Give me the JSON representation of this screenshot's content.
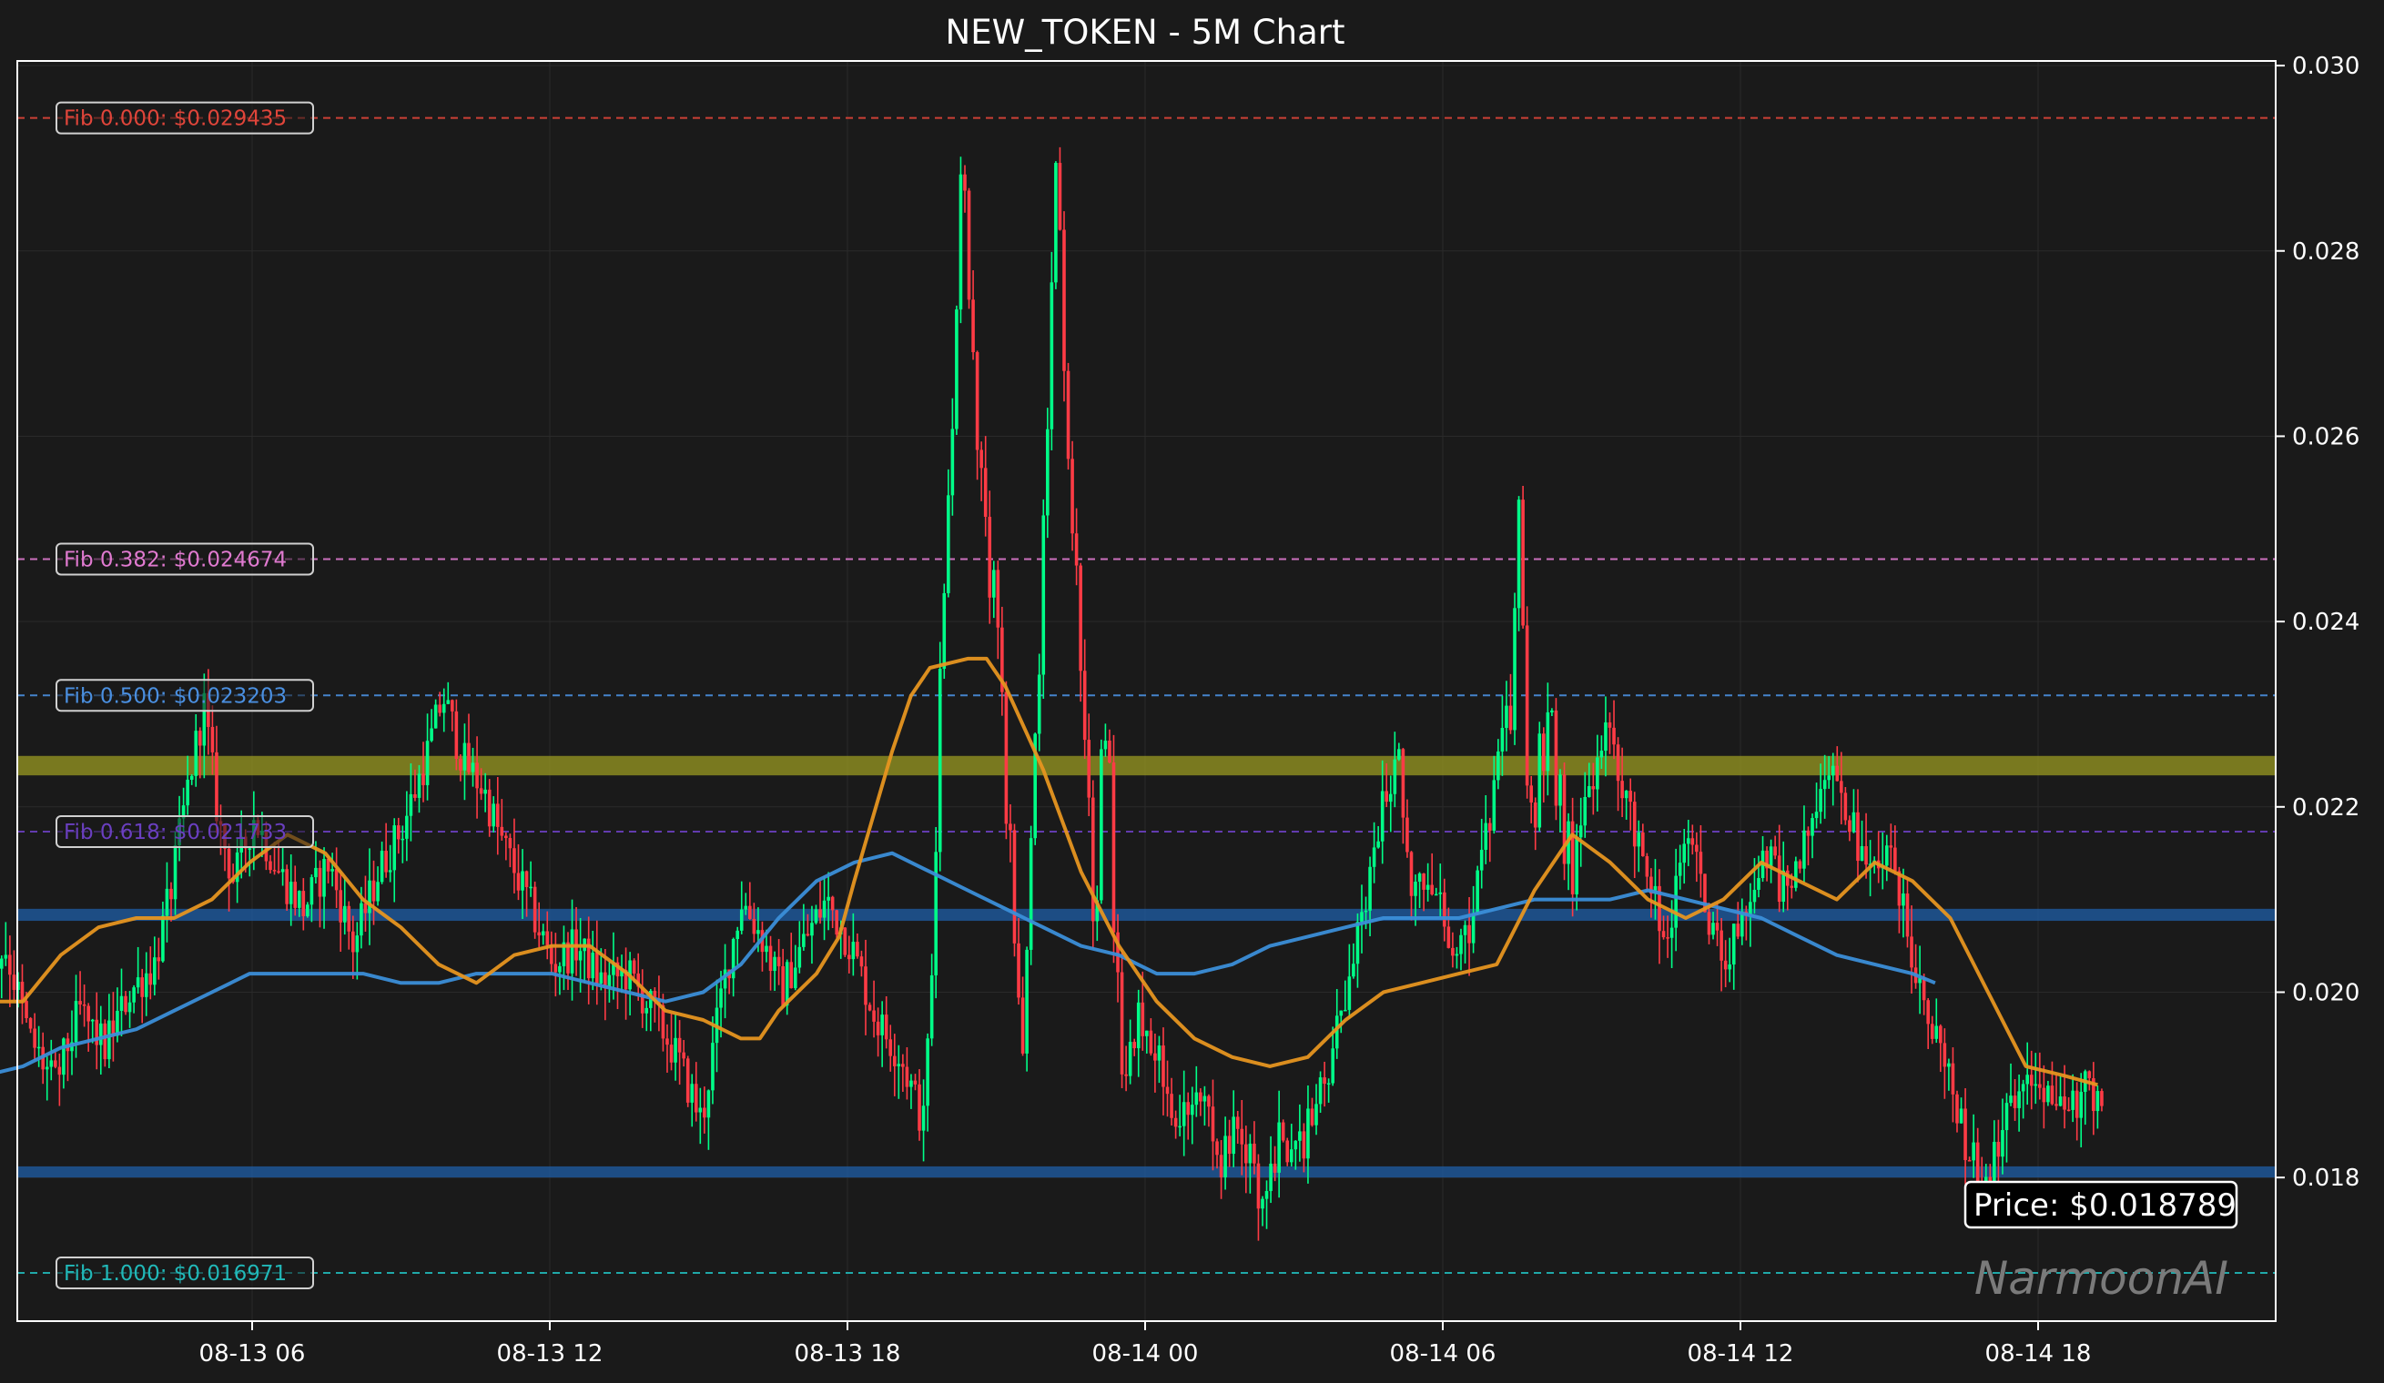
{
  "chart_data": {
    "type": "candlestick",
    "title": "NEW_TOKEN - 5M Chart",
    "ylim": [
      0.01645,
      0.03005
    ],
    "x_range_hours": [
      -3.8,
      26.75
    ],
    "x_ticks": [
      {
        "label": "08-13 06",
        "hour": 6
      },
      {
        "label": "08-13 12",
        "hour": 12
      },
      {
        "label": "08-13 18",
        "hour": 18
      },
      {
        "label": "08-14 00",
        "hour": 24
      },
      {
        "label": "08-14 06",
        "hour": 30
      },
      {
        "label": "08-14 12",
        "hour": 36
      },
      {
        "label": "08-14 18",
        "hour": 42
      }
    ],
    "y_ticks": [
      {
        "label": "0.018",
        "value": 0.018
      },
      {
        "label": "0.020",
        "value": 0.02
      },
      {
        "label": "0.022",
        "value": 0.022
      },
      {
        "label": "0.024",
        "value": 0.024
      },
      {
        "label": "0.026",
        "value": 0.026
      },
      {
        "label": "0.028",
        "value": 0.028
      },
      {
        "label": "0.030",
        "value": 0.03
      }
    ],
    "fib_levels": [
      {
        "label": "Fib 0.000: $0.029435",
        "value": 0.029435,
        "color": "#e0453a"
      },
      {
        "label": "Fib 0.382: $0.024674",
        "value": 0.024674,
        "color": "#e07ad0"
      },
      {
        "label": "Fib 0.500: $0.023203",
        "value": 0.023203,
        "color": "#4a8fe0"
      },
      {
        "label": "Fib 0.618: $0.021733",
        "value": 0.021733,
        "color": "#6a3fc0"
      },
      {
        "label": "Fib 1.000: $0.016971",
        "value": 0.016971,
        "color": "#21b8b8"
      }
    ],
    "zones": [
      {
        "from": 0.02234,
        "to": 0.02255,
        "color": "#9a9a22"
      },
      {
        "from": 0.02077,
        "to": 0.0209,
        "color": "#1f5fa8"
      },
      {
        "from": 0.018,
        "to": 0.01812,
        "color": "#1f5fa8"
      }
    ],
    "price_label": "Price: $0.018789",
    "watermark": "NarmoonAI",
    "colors": {
      "up": "#00ff88",
      "down": "#ff3b45",
      "ema_fast": "#e69520",
      "ema_slow": "#3b8ed8",
      "grid": "#2a2a2a",
      "axis": "#ffffff"
    },
    "close_path": [
      [
        -3.8,
        0.019
      ],
      [
        -3.4,
        0.0182
      ],
      [
        -3.0,
        0.0176
      ],
      [
        -2.7,
        0.0191
      ],
      [
        -2.5,
        0.0212
      ],
      [
        -2.3,
        0.0203
      ],
      [
        -2.0,
        0.0214
      ],
      [
        -1.6,
        0.0204
      ],
      [
        -1.2,
        0.02
      ],
      [
        -0.8,
        0.021
      ],
      [
        -0.4,
        0.0203
      ],
      [
        0.0,
        0.021
      ],
      [
        0.5,
        0.0201
      ],
      [
        1.0,
        0.0205
      ],
      [
        1.5,
        0.0195
      ],
      [
        2.0,
        0.019
      ],
      [
        2.5,
        0.0198
      ],
      [
        3.0,
        0.0194
      ],
      [
        3.5,
        0.02
      ],
      [
        4.0,
        0.0203
      ],
      [
        4.3,
        0.021
      ],
      [
        4.7,
        0.0223
      ],
      [
        5.0,
        0.0231
      ],
      [
        5.3,
        0.0218
      ],
      [
        5.6,
        0.0212
      ],
      [
        6.0,
        0.0219
      ],
      [
        6.5,
        0.0213
      ],
      [
        7.0,
        0.0209
      ],
      [
        7.5,
        0.0214
      ],
      [
        8.0,
        0.0205
      ],
      [
        8.5,
        0.0213
      ],
      [
        9.0,
        0.0218
      ],
      [
        9.5,
        0.0226
      ],
      [
        9.8,
        0.0232
      ],
      [
        10.2,
        0.0225
      ],
      [
        10.6,
        0.0222
      ],
      [
        11.0,
        0.0216
      ],
      [
        11.5,
        0.021
      ],
      [
        12.0,
        0.0203
      ],
      [
        12.5,
        0.0205
      ],
      [
        13.0,
        0.0201
      ],
      [
        13.5,
        0.0202
      ],
      [
        14.0,
        0.0198
      ],
      [
        14.5,
        0.0193
      ],
      [
        15.0,
        0.0186
      ],
      [
        15.4,
        0.02
      ],
      [
        15.8,
        0.021
      ],
      [
        16.2,
        0.0206
      ],
      [
        16.6,
        0.02
      ],
      [
        17.0,
        0.0205
      ],
      [
        17.5,
        0.021
      ],
      [
        18.0,
        0.0205
      ],
      [
        18.5,
        0.0197
      ],
      [
        19.0,
        0.0193
      ],
      [
        19.5,
        0.0185
      ],
      [
        20.0,
        0.019
      ],
      [
        20.5,
        0.0187
      ],
      [
        21.0,
        0.019
      ],
      [
        21.5,
        0.0185
      ],
      [
        22.0,
        0.0182
      ],
      [
        22.5,
        0.0188
      ],
      [
        23.0,
        0.0197
      ],
      [
        23.4,
        0.019
      ],
      [
        23.8,
        0.0198
      ],
      [
        24.2,
        0.0193
      ],
      [
        24.6,
        0.0185
      ],
      [
        25.0,
        0.019
      ],
      [
        25.4,
        0.0181
      ],
      [
        25.8,
        0.0186
      ],
      [
        26.2,
        0.0178
      ],
      [
        26.6,
        0.0184
      ],
      [
        27.0,
        0.0183
      ],
      [
        27.5,
        0.019
      ],
      [
        28.0,
        0.0201
      ],
      [
        28.4,
        0.0212
      ],
      [
        28.7,
        0.0221
      ],
      [
        29.0,
        0.0225
      ],
      [
        29.3,
        0.021
      ],
      [
        29.6,
        0.0214
      ],
      [
        30.0,
        0.0205
      ],
      [
        30.4,
        0.0207
      ],
      [
        30.8,
        0.0218
      ],
      [
        31.2,
        0.023
      ],
      [
        31.6,
        0.0222
      ],
      [
        32.0,
        0.0214
      ],
      [
        32.4,
        0.021
      ],
      [
        32.8,
        0.0222
      ],
      [
        33.2,
        0.0228
      ],
      [
        33.6,
        0.022
      ],
      [
        34.0,
        0.0213
      ],
      [
        34.4,
        0.0205
      ],
      [
        34.8,
        0.0218
      ],
      [
        35.2,
        0.0208
      ],
      [
        35.6,
        0.0203
      ],
      [
        36.0,
        0.021
      ],
      [
        36.4,
        0.0215
      ],
      [
        36.8,
        0.021
      ],
      [
        37.2,
        0.0217
      ],
      [
        37.6,
        0.0226
      ],
      [
        38.0,
        0.022
      ],
      [
        38.4,
        0.0212
      ],
      [
        38.8,
        0.0216
      ],
      [
        39.2,
        0.0207
      ],
      [
        39.6,
        0.0198
      ],
      [
        40.0,
        0.0192
      ],
      [
        40.4,
        0.0183
      ],
      [
        40.8,
        0.018
      ],
      [
        41.2,
        0.0186
      ],
      [
        41.6,
        0.0192
      ],
      [
        42.0,
        0.019
      ],
      [
        42.4,
        0.0186
      ],
      [
        42.8,
        0.019
      ],
      [
        43.2,
        0.0188
      ]
    ],
    "spikes": [
      {
        "from_hour": 19.6,
        "to_hour": 21.6,
        "peak_hour": 20.3,
        "low": 0.0198,
        "high": 0.02944
      },
      {
        "from_hour": 21.6,
        "to_hour": 23.0,
        "peak_hour": 22.2,
        "low": 0.021,
        "high": 0.0294
      },
      {
        "from_hour": 23.0,
        "to_hour": 23.5,
        "peak_hour": 23.1,
        "low": 0.0205,
        "high": 0.0238
      },
      {
        "from_hour": 31.3,
        "to_hour": 31.8,
        "peak_hour": 31.5,
        "low": 0.0215,
        "high": 0.0261
      },
      {
        "from_hour": 31.8,
        "to_hour": 32.6,
        "peak_hour": 32.0,
        "low": 0.0215,
        "high": 0.0237
      }
    ],
    "ema_fast": [
      [
        -3.8,
        0.0182
      ],
      [
        -3.0,
        0.0184
      ],
      [
        -2.0,
        0.0192
      ],
      [
        -1.0,
        0.0198
      ],
      [
        0.0,
        0.0202
      ],
      [
        1.0,
        0.0199
      ],
      [
        2.0,
        0.0199
      ],
      [
        3.0,
        0.0199
      ],
      [
        4.0,
        0.0204
      ],
      [
        5.0,
        0.0207
      ],
      [
        6.0,
        0.0208
      ],
      [
        7.0,
        0.0208
      ],
      [
        8.0,
        0.021
      ],
      [
        9.0,
        0.0214
      ],
      [
        10.0,
        0.0217
      ],
      [
        11.0,
        0.0215
      ],
      [
        12.0,
        0.021
      ],
      [
        13.0,
        0.0207
      ],
      [
        14.0,
        0.0203
      ],
      [
        15.0,
        0.0201
      ],
      [
        16.0,
        0.0204
      ],
      [
        17.0,
        0.0205
      ],
      [
        18.0,
        0.0205
      ],
      [
        19.0,
        0.0202
      ],
      [
        20.0,
        0.0198
      ],
      [
        21.0,
        0.0197
      ],
      [
        22.0,
        0.0195
      ],
      [
        22.5,
        0.0195
      ],
      [
        23.0,
        0.0198
      ],
      [
        24.0,
        0.0202
      ],
      [
        24.6,
        0.0206
      ],
      [
        25.0,
        0.0212
      ],
      [
        25.5,
        0.0219
      ],
      [
        26.0,
        0.0226
      ],
      [
        26.5,
        0.0232
      ],
      [
        27.0,
        0.0235
      ],
      [
        28.0,
        0.0236
      ],
      [
        28.5,
        0.0236
      ],
      [
        29.0,
        0.0233
      ],
      [
        30.0,
        0.0224
      ],
      [
        31.0,
        0.0213
      ],
      [
        32.0,
        0.0205
      ],
      [
        33.0,
        0.0199
      ],
      [
        34.0,
        0.0195
      ],
      [
        35.0,
        0.0193
      ],
      [
        36.0,
        0.0192
      ],
      [
        37.0,
        0.0193
      ],
      [
        38.0,
        0.0197
      ],
      [
        39.0,
        0.02
      ],
      [
        40.0,
        0.0201
      ],
      [
        41.0,
        0.0202
      ],
      [
        42.0,
        0.0203
      ],
      [
        43.0,
        0.0211
      ],
      [
        44.0,
        0.0217
      ],
      [
        45.0,
        0.0214
      ],
      [
        46.0,
        0.021
      ],
      [
        47.0,
        0.0208
      ],
      [
        48.0,
        0.021
      ],
      [
        49.0,
        0.0214
      ],
      [
        50.0,
        0.0212
      ],
      [
        51.0,
        0.021
      ],
      [
        52.0,
        0.0214
      ],
      [
        53.0,
        0.0212
      ],
      [
        54.0,
        0.0208
      ],
      [
        55.0,
        0.02
      ],
      [
        56.0,
        0.0192
      ],
      [
        57.0,
        0.0191
      ],
      [
        57.9,
        0.019
      ]
    ],
    "ema_slow": [
      [
        -3.8,
        0.0183
      ],
      [
        -3.0,
        0.0183
      ],
      [
        -2.0,
        0.0185
      ],
      [
        -1.0,
        0.0187
      ],
      [
        0.0,
        0.0189
      ],
      [
        1.0,
        0.019
      ],
      [
        2.0,
        0.0191
      ],
      [
        3.0,
        0.0192
      ],
      [
        4.0,
        0.0194
      ],
      [
        5.0,
        0.0195
      ],
      [
        6.0,
        0.0196
      ],
      [
        7.0,
        0.0198
      ],
      [
        8.0,
        0.02
      ],
      [
        9.0,
        0.0202
      ],
      [
        10.0,
        0.0202
      ],
      [
        11.0,
        0.0202
      ],
      [
        12.0,
        0.0202
      ],
      [
        13.0,
        0.0201
      ],
      [
        14.0,
        0.0201
      ],
      [
        15.0,
        0.0202
      ],
      [
        16.0,
        0.0202
      ],
      [
        17.0,
        0.0202
      ],
      [
        18.0,
        0.0201
      ],
      [
        19.0,
        0.02
      ],
      [
        20.0,
        0.0199
      ],
      [
        21.0,
        0.02
      ],
      [
        22.0,
        0.0203
      ],
      [
        23.0,
        0.0208
      ],
      [
        24.0,
        0.0212
      ],
      [
        25.0,
        0.0214
      ],
      [
        26.0,
        0.0215
      ],
      [
        27.0,
        0.0213
      ],
      [
        28.0,
        0.0211
      ],
      [
        29.0,
        0.0209
      ],
      [
        30.0,
        0.0207
      ],
      [
        31.0,
        0.0205
      ],
      [
        32.0,
        0.0204
      ],
      [
        33.0,
        0.0202
      ],
      [
        34.0,
        0.0202
      ],
      [
        35.0,
        0.0203
      ],
      [
        36.0,
        0.0205
      ],
      [
        37.0,
        0.0206
      ],
      [
        38.0,
        0.0207
      ],
      [
        39.0,
        0.0208
      ],
      [
        40.0,
        0.0208
      ],
      [
        41.0,
        0.0208
      ],
      [
        42.0,
        0.0209
      ],
      [
        43.0,
        0.021
      ],
      [
        44.0,
        0.021
      ],
      [
        45.0,
        0.021
      ],
      [
        46.0,
        0.0211
      ],
      [
        47.0,
        0.021
      ],
      [
        48.0,
        0.0209
      ],
      [
        49.0,
        0.0208
      ],
      [
        50.0,
        0.0206
      ],
      [
        51.0,
        0.0204
      ],
      [
        52.0,
        0.0203
      ],
      [
        53.0,
        0.0202
      ],
      [
        53.6,
        0.0201
      ]
    ],
    "time_scale": {
      "note": "x values above are hours relative to 08-13 00:00; candles drawn every 5 minutes"
    }
  }
}
